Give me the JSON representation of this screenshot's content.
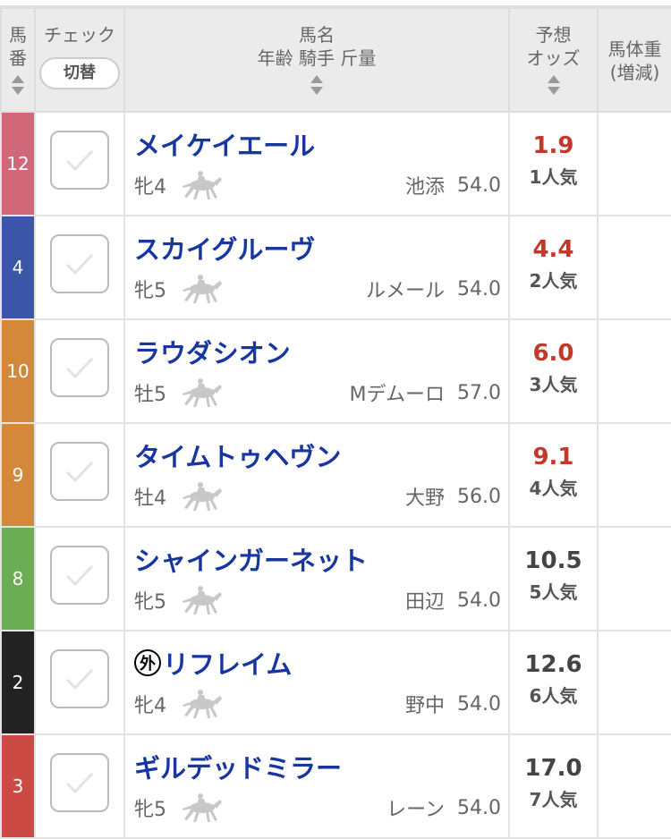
{
  "header": {
    "num": "馬番",
    "check": "チェック",
    "toggle": "切替",
    "name_l1": "馬名",
    "name_l2": "年齢 騎手 斤量",
    "odds_l1": "予想",
    "odds_l2": "オッズ",
    "weight_l1": "馬体重",
    "weight_l2": "(増減)"
  },
  "rows": [
    {
      "num": "12",
      "color": "#d0687a",
      "name": "メイケイエール",
      "foreign": false,
      "sexage": "牝4",
      "jockey": "池添",
      "kinryo": "54.0",
      "odds": "1.9",
      "pop": "1人気",
      "hot": true
    },
    {
      "num": "4",
      "color": "#3b56a8",
      "name": "スカイグルーヴ",
      "foreign": false,
      "sexage": "牝5",
      "jockey": "ルメール",
      "kinryo": "54.0",
      "odds": "4.4",
      "pop": "2人気",
      "hot": true
    },
    {
      "num": "10",
      "color": "#d4883a",
      "name": "ラウダシオン",
      "foreign": false,
      "sexage": "牡5",
      "jockey": "Mデムーロ",
      "kinryo": "57.0",
      "odds": "6.0",
      "pop": "3人気",
      "hot": true
    },
    {
      "num": "9",
      "color": "#d4883a",
      "name": "タイムトゥヘヴン",
      "foreign": false,
      "sexage": "牡4",
      "jockey": "大野",
      "kinryo": "56.0",
      "odds": "9.1",
      "pop": "4人気",
      "hot": true
    },
    {
      "num": "8",
      "color": "#6aad55",
      "name": "シャインガーネット",
      "foreign": false,
      "sexage": "牝5",
      "jockey": "田辺",
      "kinryo": "54.0",
      "odds": "10.5",
      "pop": "5人気",
      "hot": false
    },
    {
      "num": "2",
      "color": "#222222",
      "name": "リフレイム",
      "foreign": true,
      "foreign_mark": "外",
      "sexage": "牝4",
      "jockey": "野中",
      "kinryo": "54.0",
      "odds": "12.6",
      "pop": "6人気",
      "hot": false
    },
    {
      "num": "3",
      "color": "#cc4a44",
      "name": "ギルデッドミラー",
      "foreign": false,
      "sexage": "牝5",
      "jockey": "レーン",
      "kinryo": "54.0",
      "odds": "17.0",
      "pop": "7人気",
      "hot": false
    }
  ],
  "colors": {
    "hot_odds": "#c0392b",
    "normal_odds": "#444444",
    "name": "#1736a0"
  }
}
